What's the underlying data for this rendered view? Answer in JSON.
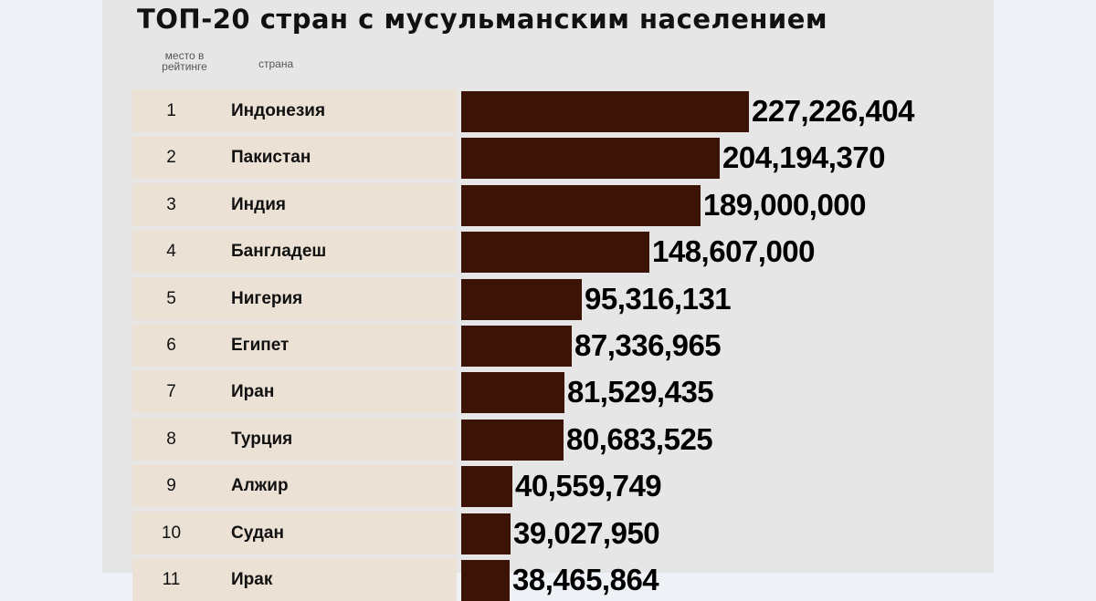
{
  "chart_data": {
    "type": "bar",
    "orientation": "horizontal",
    "title": "ТОП-20 стран с мусульманским населением",
    "column_headers": {
      "rank": "место в рейтинге",
      "country": "страна"
    },
    "categories": [
      "Индонезия",
      "Пакистан",
      "Индия",
      "Бангладеш",
      "Нигерия",
      "Египет",
      "Иран",
      "Турция",
      "Алжир",
      "Судан",
      "Ирак"
    ],
    "ranks": [
      "1",
      "2",
      "3",
      "4",
      "5",
      "6",
      "7",
      "8",
      "9",
      "10",
      "11"
    ],
    "values": [
      227226404,
      204194370,
      189000000,
      148607000,
      95316131,
      87336965,
      81529435,
      80683525,
      40559749,
      39027950,
      38465864
    ],
    "value_labels": [
      "227,226,404",
      "204,194,370",
      "189,000,000",
      "148,607,000",
      "95,316,131",
      "87,336,965",
      "81,529,435",
      "80,683,525",
      "40,559,749",
      "39,027,950",
      "38,465,864"
    ],
    "bar_color": "#3b1407",
    "row_color": "#ebe1d5"
  }
}
